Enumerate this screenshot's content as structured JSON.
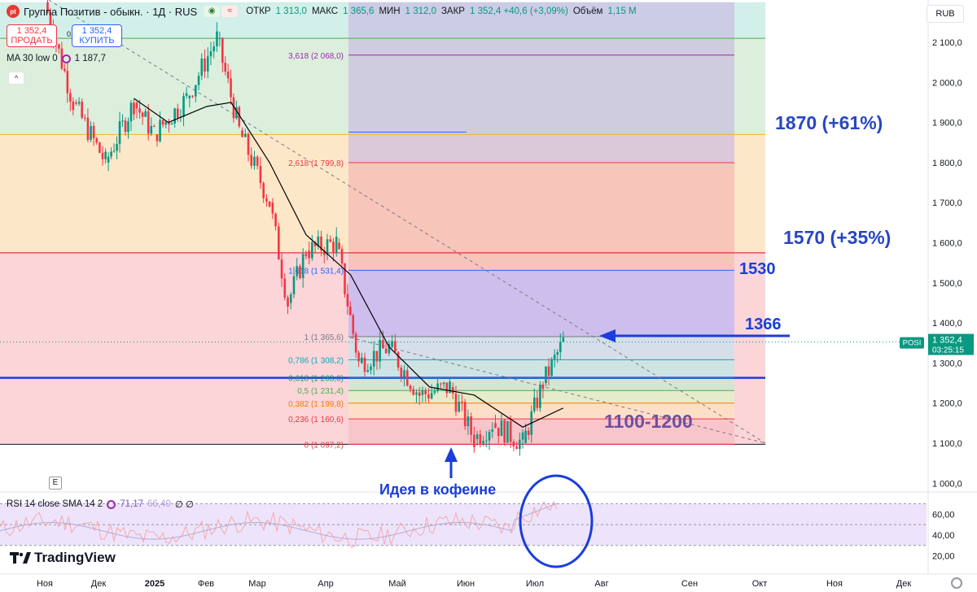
{
  "header": {
    "logo": "pt",
    "title": "Группа Позитив - обыкн. · 1Д · RUS",
    "ohlc": [
      {
        "k": "ОТКР",
        "v": "1 313,0"
      },
      {
        "k": "МАКС",
        "v": "1 365,6"
      },
      {
        "k": "МИН",
        "v": "1 312,0"
      },
      {
        "k": "ЗАКР",
        "v": "1 352,4 +40,6 (+3,09%)"
      }
    ],
    "volume_label": "Объём",
    "volume_value": "1,15 M",
    "currency": "RUB"
  },
  "trade": {
    "sell_price": "1 352,4",
    "sell_label": "ПРОДАТЬ",
    "buy_price": "1 352,4",
    "buy_label": "КУПИТЬ",
    "spread": "0,0"
  },
  "ma_legend": {
    "label": "MA 30 low 0",
    "value": "1 187,7"
  },
  "collapse_label": "^",
  "e_button": "E",
  "rsi_legend": {
    "label": "RSI 14 close SMA 14 2",
    "v1": "71,17",
    "v2": "66,40",
    "extra": "∅ ∅"
  },
  "brand": "TradingView",
  "annotations": {
    "idea": "Идея в кофеине",
    "t1870": "1870 (+61%)",
    "t1570": "1570 (+35%)",
    "t1530": "1530",
    "t1366": "1366",
    "t1100": "1100-1200"
  },
  "colors": {
    "up": "#089981",
    "down": "#f23645",
    "blue": "#1a3ddb",
    "ma": "#000000"
  },
  "chart_data": {
    "type": "candlestick",
    "title": "Группа Позитив - обыкн. · 1Д · RUS",
    "x_ticks": [
      "Ноя",
      "Дек",
      "2025",
      "Фев",
      "Мар",
      "Апр",
      "Май",
      "Июн",
      "Июл",
      "Авг",
      "Сен",
      "Окт",
      "Ноя",
      "Дек"
    ],
    "y_ticks": [
      "2 100,0",
      "2 000,0",
      "1 900,0",
      "1 800,0",
      "1 700,0",
      "1 600,0",
      "1 500,0",
      "1 400,0",
      "1 300,0",
      "1 200,0",
      "1 100,0",
      "1 000,0"
    ],
    "y_tick_values": [
      2100,
      2000,
      1900,
      1800,
      1700,
      1600,
      1500,
      1400,
      1300,
      1200,
      1100,
      1000
    ],
    "ylim": [
      910,
      2200
    ],
    "last_price": {
      "symbol": "POSI",
      "value": "1 352,4",
      "countdown": "03:25:15",
      "num": 1352.4
    },
    "price_path": [
      {
        "date": "2024-11-01",
        "close": 2200
      },
      {
        "date": "2024-11-15",
        "close": 1950
      },
      {
        "date": "2024-12-01",
        "close": 1800
      },
      {
        "date": "2024-12-15",
        "close": 1950
      },
      {
        "date": "2024-12-25",
        "close": 1870
      },
      {
        "date": "2025-01-10",
        "close": 1960
      },
      {
        "date": "2025-01-25",
        "close": 2110
      },
      {
        "date": "2025-02-05",
        "close": 1880
      },
      {
        "date": "2025-02-20",
        "close": 1700
      },
      {
        "date": "2025-03-01",
        "close": 1450
      },
      {
        "date": "2025-03-10",
        "close": 1580
      },
      {
        "date": "2025-03-25",
        "close": 1600
      },
      {
        "date": "2025-04-05",
        "close": 1300
      },
      {
        "date": "2025-04-20",
        "close": 1340
      },
      {
        "date": "2025-05-05",
        "close": 1220
      },
      {
        "date": "2025-05-20",
        "close": 1240
      },
      {
        "date": "2025-06-01",
        "close": 1110
      },
      {
        "date": "2025-06-10",
        "close": 1150
      },
      {
        "date": "2025-06-25",
        "close": 1100
      },
      {
        "date": "2025-07-05",
        "close": 1250
      },
      {
        "date": "2025-07-15",
        "close": 1352.4
      }
    ],
    "ma30_path": [
      {
        "date": "2024-12-15",
        "value": 1960
      },
      {
        "date": "2025-01-01",
        "value": 1900
      },
      {
        "date": "2025-01-20",
        "value": 1940
      },
      {
        "date": "2025-02-01",
        "value": 1950
      },
      {
        "date": "2025-02-20",
        "value": 1800
      },
      {
        "date": "2025-03-10",
        "value": 1620
      },
      {
        "date": "2025-04-01",
        "value": 1520
      },
      {
        "date": "2025-04-20",
        "value": 1340
      },
      {
        "date": "2025-05-10",
        "value": 1240
      },
      {
        "date": "2025-06-01",
        "value": 1220
      },
      {
        "date": "2025-06-25",
        "value": 1140
      },
      {
        "date": "2025-07-15",
        "value": 1187.7
      }
    ],
    "fib_levels": [
      {
        "label": "0 (1 097,2)",
        "value": 1097.2,
        "color": "#f23645"
      },
      {
        "label": "0,236 (1 160,6)",
        "value": 1160.6,
        "color": "#f23645"
      },
      {
        "label": "0,382 (1 199,8)",
        "value": 1199.8,
        "color": "#f57c00"
      },
      {
        "label": "0,5 (1 231,4)",
        "value": 1231.4,
        "color": "#4caf50"
      },
      {
        "label": "0,618 (1 263,0)",
        "value": 1263.0,
        "color": "#089981"
      },
      {
        "label": "0,786 (1 308,2)",
        "value": 1308.2,
        "color": "#00acc1"
      },
      {
        "label": "1 (1 365,6)",
        "value": 1365.6,
        "color": "#787b86"
      },
      {
        "label": "1,618 (1 531,4)",
        "value": 1531.4,
        "color": "#2962ff"
      },
      {
        "label": "2,618 (1 799,8)",
        "value": 1799.8,
        "color": "#f23645"
      },
      {
        "label": "3,618 (2 068,0)",
        "value": 2068.0,
        "color": "#9c27b0"
      }
    ],
    "zones": [
      {
        "from": 1097.2,
        "to": 1575,
        "color": "#fbd5d8"
      },
      {
        "from": 1575,
        "to": 1870,
        "color": "#fde7c9"
      },
      {
        "from": 1870,
        "to": 2110,
        "color": "#dcefdd"
      },
      {
        "from": 2110,
        "to": 2200,
        "color": "#d2efe9"
      }
    ],
    "horizontal_lines": [
      1870,
      1575,
      1263,
      1097.2
    ],
    "rsi": {
      "ticks": [
        "60,00",
        "40,00",
        "20,00"
      ],
      "tick_values": [
        60,
        40,
        20
      ],
      "ylim": [
        15,
        75
      ],
      "bands": [
        70,
        50,
        30
      ],
      "value": 71.17,
      "sma": 66.4
    }
  }
}
